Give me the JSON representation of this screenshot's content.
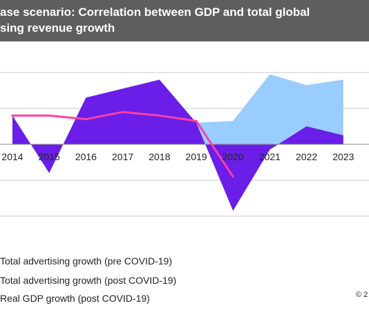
{
  "header": {
    "title_line1": "ase scenario: Correlation between GDP and total global",
    "title_line2": "sing revenue growth"
  },
  "chart_data": {
    "type": "area",
    "categories": [
      "2014",
      "2015",
      "2016",
      "2017",
      "2018",
      "2019",
      "2020",
      "2021",
      "2022",
      "2023"
    ],
    "ylim": [
      -4,
      8
    ],
    "grid": true,
    "legend_placement": "bottom-left",
    "series": [
      {
        "name": "Total advertising growth (pre COVID-19)",
        "kind": "area",
        "color": "#99ccff",
        "values": [
          null,
          null,
          null,
          null,
          null,
          1.2,
          1.3,
          3.9,
          3.3,
          3.6
        ]
      },
      {
        "name": "Total advertising growth (post COVID-19)",
        "kind": "area",
        "color": "#6a1ee8",
        "values": [
          1.6,
          -1.6,
          2.6,
          3.1,
          3.6,
          1.2,
          -3.7,
          -0.3,
          1.0,
          0.5
        ]
      },
      {
        "name": "Real GDP growth (post COVID-19)",
        "kind": "line",
        "color": "#ff3fa4",
        "values": [
          1.6,
          1.6,
          1.4,
          1.8,
          1.6,
          1.3,
          -1.8,
          null,
          null,
          null
        ]
      }
    ],
    "copyright": "© 2"
  }
}
